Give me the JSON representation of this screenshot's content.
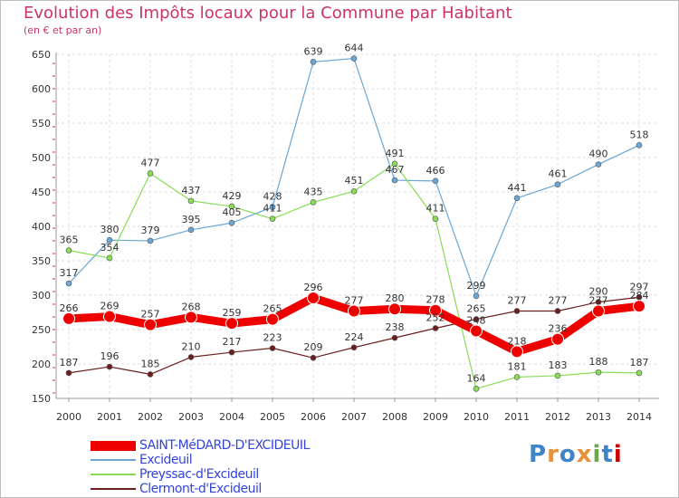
{
  "chart_data": {
    "type": "line",
    "title": "Evolution des Impôts locaux pour la Commune par Habitant",
    "subtitle": "(en € et par an)",
    "xlabel": "",
    "ylabel": "",
    "x": [
      "2000",
      "2001",
      "2002",
      "2003",
      "2004",
      "2005",
      "2006",
      "2007",
      "2008",
      "2009",
      "2010",
      "2011",
      "2012",
      "2013",
      "2014"
    ],
    "ylim": [
      150,
      650
    ],
    "yticks": [
      150,
      200,
      250,
      300,
      350,
      400,
      450,
      500,
      550,
      600,
      650
    ],
    "grid": true,
    "series": [
      {
        "name": "SAINT-MéDARD-D'EXCIDEUIL",
        "color": "#ee0000",
        "values": [
          266,
          269,
          257,
          268,
          259,
          265,
          296,
          277,
          280,
          278,
          248,
          218,
          236,
          277,
          284
        ]
      },
      {
        "name": "Excideuil",
        "color": "#6aa6d6",
        "values": [
          317,
          380,
          379,
          395,
          405,
          428,
          639,
          644,
          467,
          466,
          299,
          441,
          461,
          490,
          518
        ]
      },
      {
        "name": "Preyssac-d'Excideuil",
        "color": "#88dd55",
        "values": [
          365,
          354,
          477,
          437,
          429,
          411,
          435,
          451,
          491,
          411,
          164,
          181,
          183,
          188,
          187
        ]
      },
      {
        "name": "Clermont-d'Excideuil",
        "color": "#6b1e1e",
        "values": [
          187,
          196,
          185,
          210,
          217,
          223,
          209,
          224,
          238,
          252,
          265,
          277,
          277,
          290,
          297
        ]
      }
    ]
  },
  "logo": {
    "text": "Proxiti",
    "colors": [
      "#3d85c6",
      "#e69138",
      "#3d85c6",
      "#e69138",
      "#6aa84f",
      "#3d85c6",
      "#cc0000"
    ]
  }
}
